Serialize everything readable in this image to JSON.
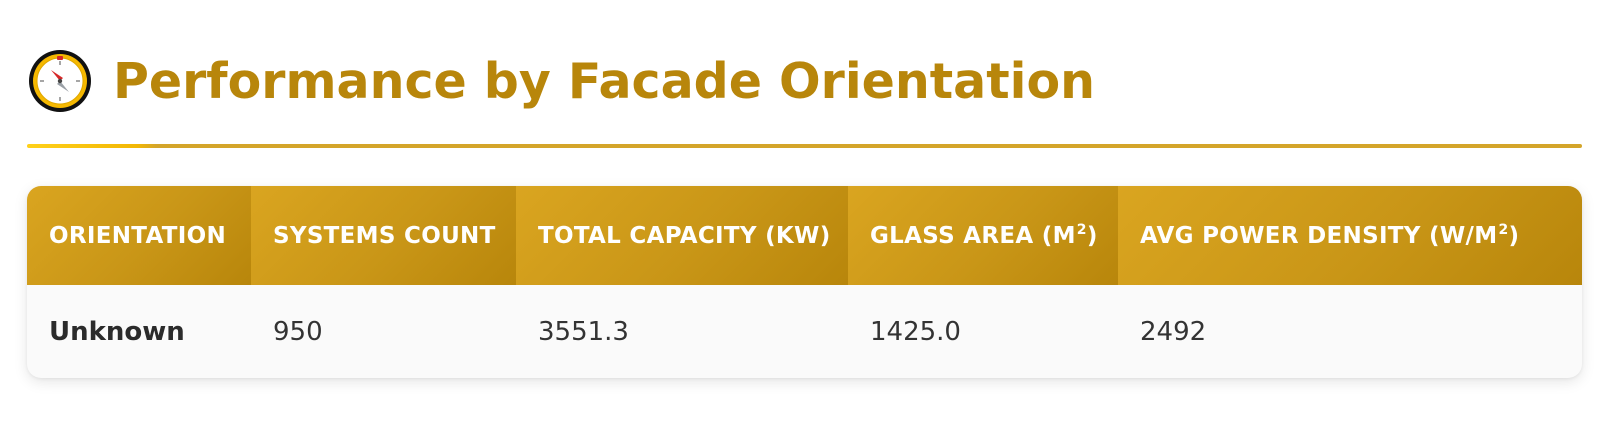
{
  "header": {
    "title": "Performance by Facade Orientation",
    "icon": "compass-icon"
  },
  "colors": {
    "accent": "#b8860b",
    "header_gradient_start": "#daa520",
    "header_gradient_end": "#b8860b",
    "divider_highlight": "#ffd11a",
    "row_background": "#fafafa",
    "text": "#333333"
  },
  "table": {
    "columns": [
      {
        "label": "ORIENTATION",
        "sup": ""
      },
      {
        "label": "SYSTEMS COUNT",
        "sup": ""
      },
      {
        "label": "TOTAL CAPACITY (KW)",
        "sup": ""
      },
      {
        "label": "GLASS AREA (M",
        "sup": "2",
        "suffix": ")"
      },
      {
        "label": "AVG POWER DENSITY (W/M",
        "sup": "2",
        "suffix": ")"
      }
    ],
    "rows": [
      {
        "orientation": "Unknown",
        "systems_count": "950",
        "total_capacity": "3551.3",
        "glass_area": "1425.0",
        "avg_power_density": "2492"
      }
    ]
  }
}
